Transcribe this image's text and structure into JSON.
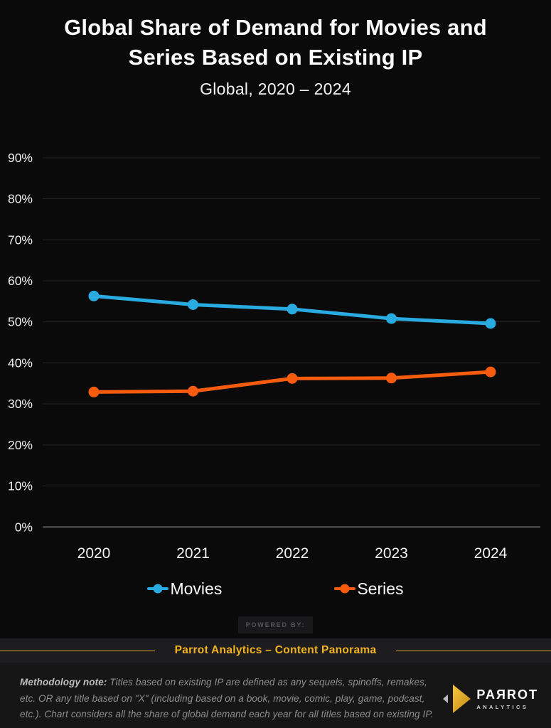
{
  "header": {
    "title_lines": [
      "Global Share of Demand for Movies and",
      "Series Based on Existing IP"
    ],
    "subtitle": "Global, 2020 – 2024"
  },
  "chart_data": {
    "type": "line",
    "title": "Global Share of Demand for Movies and Series Based on Existing IP",
    "subtitle": "Global, 2020 – 2024",
    "categories": [
      "2020",
      "2021",
      "2022",
      "2023",
      "2024"
    ],
    "series": [
      {
        "name": "Movies",
        "color": "#29ABE2",
        "values": [
          56.3,
          54.2,
          53.1,
          50.8,
          49.6
        ]
      },
      {
        "name": "Series",
        "color": "#F75B0E",
        "values": [
          32.9,
          33.1,
          36.2,
          36.3,
          37.8
        ]
      }
    ],
    "unit": "%",
    "yticks": [
      0,
      10,
      20,
      30,
      40,
      50,
      60,
      70,
      80,
      90
    ],
    "ylim": [
      0,
      95
    ],
    "grid": true,
    "legend_position": "bottom"
  },
  "legend": {
    "items": [
      {
        "label": "Movies",
        "color": "#29ABE2"
      },
      {
        "label": "Series",
        "color": "#F75B0E"
      }
    ]
  },
  "footer": {
    "powered_by": "POWERED BY:",
    "brand_line": "Parrot Analytics – Content Panorama",
    "accent_gold": "#F2B31E",
    "line_gold": "#C79A28",
    "note_label": "Methodology note:",
    "note_text": "Titles based on existing IP are defined as any sequels, spinoffs, remakes, etc. OR any title based on \"X\" (including based on a book, movie, comic, play, game, podcast, etc.).  Chart considers all the share of global demand each year for all titles based on existing IP.",
    "logo": {
      "wordmark": "PAЯROT",
      "subtext": "ANALYTICS"
    }
  }
}
